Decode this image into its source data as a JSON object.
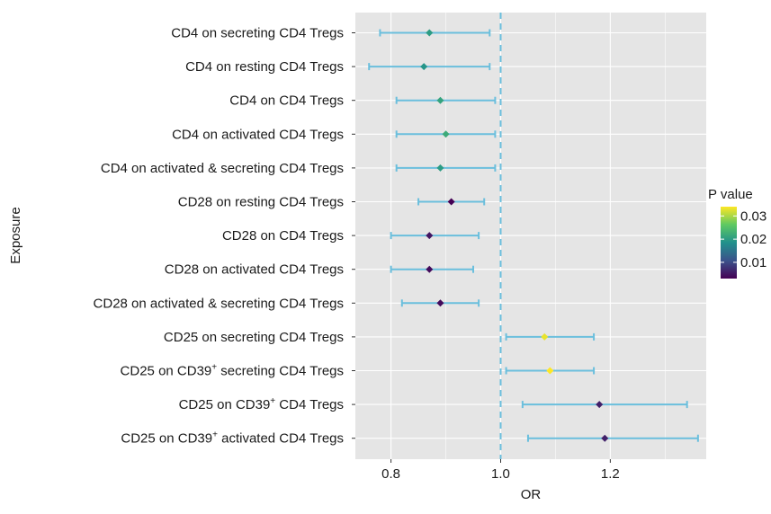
{
  "chart_data": {
    "type": "forest",
    "xlabel": "OR",
    "ylabel": "Exposure",
    "xlim": [
      0.735,
      1.375
    ],
    "xticks": [
      0.8,
      1.0,
      1.2
    ],
    "xtick_labels": [
      "0.8",
      "1.0",
      "1.2"
    ],
    "reference_line": 1.0,
    "grid": true,
    "legend": {
      "title": "P value",
      "type": "colorbar",
      "placement": "right",
      "range": [
        0.003,
        0.034
      ],
      "ticks": [
        0.01,
        0.02,
        0.03
      ],
      "tick_labels": [
        "0.01",
        "0.02",
        "0.03"
      ],
      "colors": [
        "#440154",
        "#3b528b",
        "#21918c",
        "#5ec962",
        "#fde725"
      ]
    },
    "rows": [
      {
        "label": "CD4 on secreting CD4 Tregs",
        "label_main": "CD4 on secreting CD4 Tregs",
        "or": 0.87,
        "lower": 0.78,
        "upper": 0.98,
        "p": 0.02
      },
      {
        "label": "CD4 on resting CD4 Tregs",
        "label_main": "CD4 on resting CD4 Tregs",
        "or": 0.86,
        "lower": 0.76,
        "upper": 0.98,
        "p": 0.019
      },
      {
        "label": "CD4 on CD4 Tregs",
        "label_main": "CD4 on CD4 Tregs",
        "or": 0.89,
        "lower": 0.81,
        "upper": 0.99,
        "p": 0.021
      },
      {
        "label": "CD4 on activated CD4 Tregs",
        "label_main": "CD4 on activated CD4 Tregs",
        "or": 0.9,
        "lower": 0.81,
        "upper": 0.99,
        "p": 0.022
      },
      {
        "label": "CD4 on activated & secreting CD4 Tregs",
        "label_main": "CD4 on activated & secreting CD4 Tregs",
        "or": 0.89,
        "lower": 0.81,
        "upper": 0.99,
        "p": 0.02
      },
      {
        "label": "CD28 on resting CD4 Tregs",
        "label_main": "CD28 on resting CD4 Tregs",
        "or": 0.91,
        "lower": 0.85,
        "upper": 0.97,
        "p": 0.003
      },
      {
        "label": "CD28 on CD4 Tregs",
        "label_main": "CD28 on CD4 Tregs",
        "or": 0.87,
        "lower": 0.8,
        "upper": 0.96,
        "p": 0.005
      },
      {
        "label": "CD28 on activated CD4 Tregs",
        "label_main": "CD28 on activated CD4 Tregs",
        "or": 0.87,
        "lower": 0.8,
        "upper": 0.95,
        "p": 0.004
      },
      {
        "label": "CD28 on activated & secreting CD4 Tregs",
        "label_main": "CD28 on activated & secreting CD4 Tregs",
        "or": 0.89,
        "lower": 0.82,
        "upper": 0.96,
        "p": 0.004
      },
      {
        "label": "CD25 on secreting CD4 Tregs",
        "label_main": "CD25 on secreting CD4 Tregs",
        "or": 1.08,
        "lower": 1.01,
        "upper": 1.17,
        "p": 0.033
      },
      {
        "label": "CD25 on CD39+ secreting CD4 Tregs",
        "label_main": "CD25 on CD39",
        "label_sup": "+",
        "label_rest": " secreting CD4 Tregs",
        "or": 1.09,
        "lower": 1.01,
        "upper": 1.17,
        "p": 0.034
      },
      {
        "label": "CD25 on CD39+ CD4 Tregs",
        "label_main": "CD25 on CD39",
        "label_sup": "+",
        "label_rest": " CD4 Tregs",
        "or": 1.18,
        "lower": 1.04,
        "upper": 1.34,
        "p": 0.006
      },
      {
        "label": "CD25 on CD39+ activated CD4 Tregs",
        "label_main": "CD25 on CD39",
        "label_sup": "+",
        "label_rest": " activated CD4 Tregs",
        "or": 1.19,
        "lower": 1.05,
        "upper": 1.36,
        "p": 0.006
      }
    ],
    "colors": {
      "panel_bg": "#e5e5e5",
      "grid": "#ffffff",
      "ci_line": "#6bbfdd",
      "ref_line": "#6bbfdd"
    }
  }
}
